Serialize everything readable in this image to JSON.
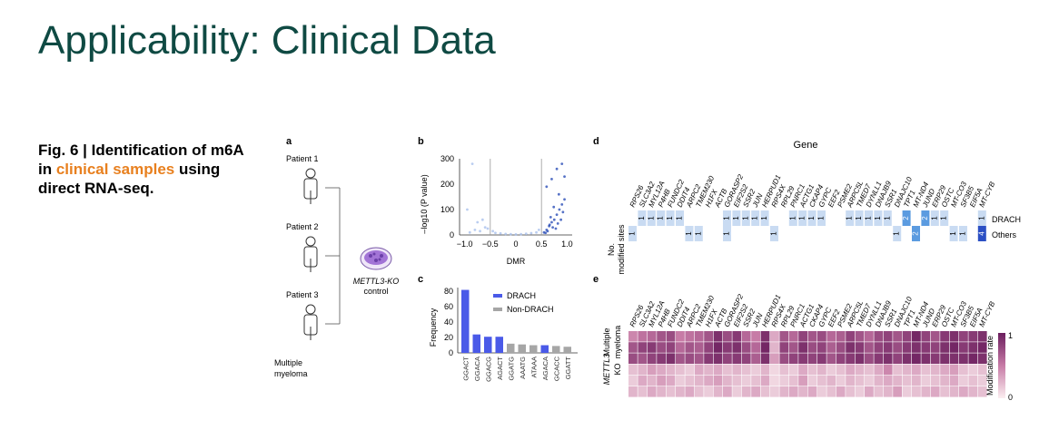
{
  "slide": {
    "title": "Applicability: Clinical Data",
    "caption_prefix": "Fig. 6 | Identification of m6A in ",
    "caption_highlight": "clinical samples",
    "caption_suffix": " using direct RNA-seq.",
    "highlight_color": "#e8801f",
    "title_color": "#0f4a43"
  },
  "panel_a": {
    "label": "a",
    "patients": [
      "Patient 1",
      "Patient 2",
      "Patient 3"
    ],
    "group_line1": "Multiple",
    "group_line2": "myeloma",
    "control_line1": "METTL3-KO",
    "control_line2": "control"
  },
  "panel_b": {
    "label": "b",
    "xlabel": "DMR",
    "ylabel": "–log10 (P value)",
    "xticks": [
      "−1.0",
      "−0.5",
      "0",
      "0.5",
      "1.0"
    ],
    "yticks": [
      "0",
      "100",
      "200",
      "300"
    ]
  },
  "panel_c": {
    "label": "c",
    "ylabel": "Frequency",
    "legend": [
      "DRACH",
      "Non-DRACH"
    ],
    "colors": {
      "DRACH": "#4a5ae8",
      "Non-DRACH": "#a6a6a6"
    }
  },
  "panel_d": {
    "label": "d",
    "title": "Gene",
    "row_label_line1": "No.",
    "row_label_line2": "modified sites",
    "rows": [
      "DRACH",
      "Others"
    ]
  },
  "panel_e": {
    "label": "e",
    "row_groups": [
      [
        "Multiple",
        "myeloma"
      ],
      [
        "METTL3",
        "KO"
      ]
    ],
    "colorbar_label": "Modification rate",
    "colorbar_max": "1",
    "colorbar_min": "0"
  },
  "genes": [
    "RPS26",
    "SLC3A2",
    "MYL12A",
    "P4HB",
    "FUNDC2",
    "DDIT4",
    "ARPC2",
    "TMEM230",
    "H1FX",
    "ACTB",
    "GORASP2",
    "EIF2S2",
    "SSR2",
    "JUN",
    "HERPUD1",
    "RPS4X",
    "RPL29",
    "PNRC1",
    "ACTG1",
    "CKAP4",
    "GYPC",
    "EEF2",
    "PSME2",
    "ARPC5L",
    "TMED7",
    "DYNLL1",
    "DNAJB9",
    "SSR1",
    "DNAJC10",
    "TPT1",
    "MT-ND4",
    "JUND",
    "ERP29",
    "OSTC",
    "MT-CO3",
    "SF3B5",
    "EIF5A",
    "MT-CYB"
  ],
  "chart_data": [
    {
      "panel": "b",
      "type": "scatter",
      "title": "",
      "xlabel": "DMR",
      "ylabel": "–log10 (P value)",
      "xlim": [
        -1.1,
        1.1
      ],
      "ylim": [
        0,
        300
      ],
      "thresholds_x": [
        -0.5,
        0.5
      ],
      "series": [
        {
          "name": "",
          "color": "#2c4fb8",
          "points": [
            [
              0.55,
              10
            ],
            [
              0.6,
              20
            ],
            [
              0.65,
              35
            ],
            [
              0.7,
              50
            ],
            [
              0.75,
              60
            ],
            [
              0.8,
              80
            ],
            [
              0.85,
              100
            ],
            [
              0.9,
              120
            ],
            [
              0.95,
              140
            ],
            [
              0.62,
              15
            ],
            [
              0.72,
              30
            ],
            [
              0.82,
              45
            ],
            [
              0.68,
              70
            ],
            [
              0.58,
              8
            ],
            [
              0.88,
              60
            ],
            [
              0.78,
              25
            ],
            [
              0.92,
              90
            ],
            [
              0.66,
              40
            ],
            [
              0.74,
              110
            ],
            [
              0.84,
              160
            ],
            [
              0.6,
              190
            ],
            [
              0.7,
              220
            ],
            [
              0.8,
              260
            ],
            [
              0.9,
              280
            ],
            [
              0.95,
              230
            ]
          ]
        },
        {
          "name": "",
          "color": "#a9c0ec",
          "points": [
            [
              -0.9,
              10
            ],
            [
              -0.8,
              20
            ],
            [
              -0.7,
              15
            ],
            [
              -0.6,
              30
            ],
            [
              -0.55,
              25
            ],
            [
              -0.4,
              8
            ],
            [
              -0.3,
              6
            ],
            [
              -0.2,
              4
            ],
            [
              -0.1,
              3
            ],
            [
              0.0,
              2
            ],
            [
              0.1,
              3
            ],
            [
              0.2,
              5
            ],
            [
              0.3,
              7
            ],
            [
              0.4,
              10
            ],
            [
              -0.85,
              280
            ],
            [
              -0.75,
              50
            ],
            [
              -0.65,
              60
            ],
            [
              -0.45,
              15
            ],
            [
              0.45,
              20
            ],
            [
              -0.95,
              100
            ]
          ]
        }
      ]
    },
    {
      "panel": "c",
      "type": "bar",
      "title": "",
      "xlabel": "",
      "ylabel": "Frequency",
      "ylim": [
        0,
        85
      ],
      "categories": [
        "GGACT",
        "GGACA",
        "GGACG",
        "AGACT",
        "GGATG",
        "AAATG",
        "ATAAA",
        "AGACA",
        "GCACC",
        "GGATT"
      ],
      "values": [
        82,
        24,
        21,
        21,
        12,
        11,
        10,
        10,
        9,
        8
      ],
      "series_type": [
        "DRACH",
        "DRACH",
        "DRACH",
        "DRACH",
        "Non-DRACH",
        "Non-DRACH",
        "Non-DRACH",
        "DRACH",
        "Non-DRACH",
        "Non-DRACH"
      ]
    },
    {
      "panel": "d",
      "type": "table",
      "title": "Gene",
      "rows": [
        "DRACH",
        "Others"
      ],
      "drach": [
        0,
        1,
        1,
        1,
        1,
        1,
        0,
        0,
        0,
        0,
        1,
        1,
        1,
        1,
        1,
        0,
        0,
        1,
        1,
        1,
        1,
        0,
        0,
        1,
        1,
        1,
        1,
        1,
        0,
        2,
        0,
        2,
        1,
        1,
        0,
        0,
        0,
        1
      ],
      "others": [
        1,
        0,
        0,
        0,
        0,
        0,
        1,
        1,
        0,
        0,
        1,
        0,
        0,
        0,
        0,
        1,
        0,
        0,
        0,
        0,
        0,
        0,
        0,
        0,
        0,
        0,
        0,
        0,
        1,
        0,
        2,
        0,
        0,
        0,
        1,
        1,
        0,
        4
      ]
    },
    {
      "panel": "e",
      "type": "heatmap",
      "title": "",
      "value_range": [
        0,
        1
      ],
      "rows": [
        "Multiple myeloma 1",
        "Multiple myeloma 2",
        "Multiple myeloma 3",
        "METTL3 KO 1",
        "METTL3 KO 2",
        "METTL3 KO 3"
      ],
      "values": [
        [
          0.45,
          0.55,
          0.6,
          0.7,
          0.75,
          0.5,
          0.55,
          0.6,
          0.7,
          0.9,
          0.75,
          0.85,
          0.6,
          0.5,
          0.9,
          0.3,
          0.7,
          0.6,
          0.8,
          0.7,
          0.75,
          0.6,
          0.65,
          0.8,
          0.7,
          0.6,
          0.75,
          0.8,
          0.7,
          0.8,
          0.95,
          0.8,
          0.7,
          0.85,
          0.9,
          0.8,
          0.85,
          0.9
        ],
        [
          0.7,
          0.8,
          0.85,
          0.75,
          0.8,
          0.6,
          0.7,
          0.65,
          0.8,
          0.95,
          0.85,
          0.9,
          0.75,
          0.6,
          0.95,
          0.25,
          0.8,
          0.7,
          0.9,
          0.75,
          0.8,
          0.65,
          0.75,
          0.9,
          0.85,
          0.7,
          0.8,
          0.85,
          0.75,
          0.85,
          0.9,
          0.85,
          0.8,
          0.9,
          0.95,
          0.85,
          0.9,
          0.95
        ],
        [
          0.75,
          0.7,
          0.8,
          0.85,
          0.9,
          0.7,
          0.75,
          0.7,
          0.85,
          0.9,
          0.8,
          0.85,
          0.8,
          0.65,
          0.9,
          0.35,
          0.75,
          0.8,
          0.85,
          0.8,
          0.85,
          0.7,
          0.8,
          0.85,
          0.9,
          0.75,
          0.85,
          0.9,
          0.8,
          0.9,
          0.95,
          0.9,
          0.85,
          0.9,
          0.9,
          0.9,
          0.95,
          0.9
        ],
        [
          0.2,
          0.25,
          0.35,
          0.3,
          0.25,
          0.2,
          0.15,
          0.3,
          0.25,
          0.3,
          0.2,
          0.25,
          0.2,
          0.15,
          0.25,
          0.1,
          0.2,
          0.15,
          0.3,
          0.2,
          0.25,
          0.15,
          0.2,
          0.3,
          0.25,
          0.2,
          0.3,
          0.45,
          0.2,
          0.25,
          0.3,
          0.2,
          0.25,
          0.3,
          0.35,
          0.2,
          0.15,
          0.2
        ],
        [
          0.15,
          0.3,
          0.25,
          0.35,
          0.3,
          0.15,
          0.2,
          0.25,
          0.3,
          0.35,
          0.25,
          0.2,
          0.15,
          0.2,
          0.3,
          0.1,
          0.15,
          0.2,
          0.35,
          0.15,
          0.2,
          0.25,
          0.15,
          0.25,
          0.2,
          0.15,
          0.25,
          0.3,
          0.25,
          0.2,
          0.25,
          0.15,
          0.2,
          0.25,
          0.3,
          0.15,
          0.2,
          0.15
        ],
        [
          0.25,
          0.2,
          0.3,
          0.25,
          0.2,
          0.25,
          0.3,
          0.2,
          0.15,
          0.25,
          0.3,
          0.15,
          0.25,
          0.3,
          0.2,
          0.15,
          0.25,
          0.3,
          0.25,
          0.3,
          0.15,
          0.2,
          0.3,
          0.2,
          0.15,
          0.3,
          0.2,
          0.25,
          0.35,
          0.15,
          0.2,
          0.25,
          0.3,
          0.2,
          0.25,
          0.3,
          0.25,
          0.2
        ]
      ]
    }
  ]
}
